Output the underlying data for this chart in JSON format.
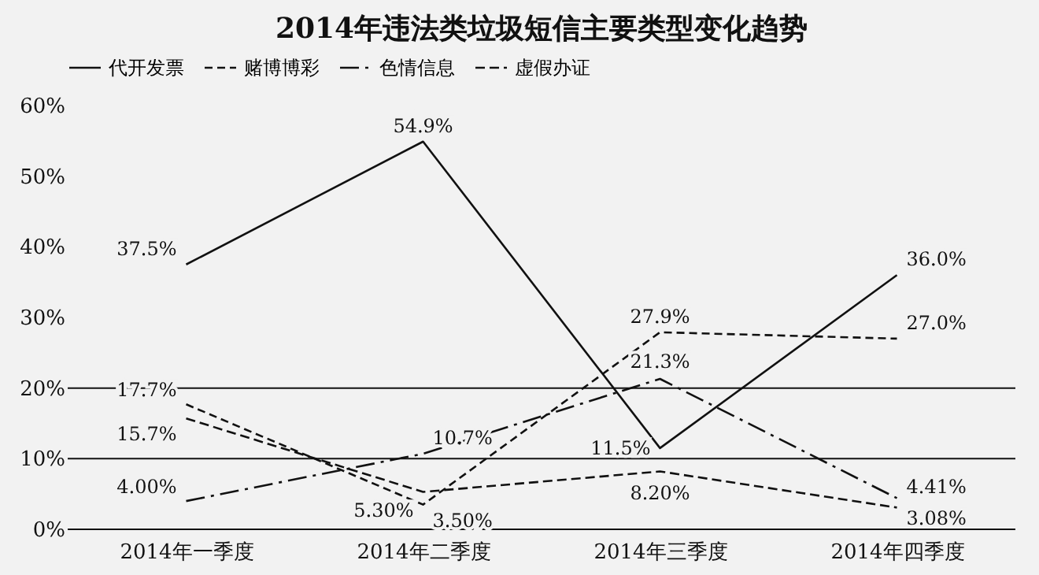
{
  "chart_data": {
    "type": "line",
    "title": "2014年违法类垃圾短信主要类型变化趋势",
    "categories": [
      "2014年一季度",
      "2014年二季度",
      "2014年三季度",
      "2014年四季度"
    ],
    "series": [
      {
        "name": "代开发票",
        "color": "#111111",
        "line_style": "solid",
        "values": [
          37.5,
          54.9,
          11.5,
          36.0
        ],
        "value_labels": [
          "37.5%",
          "54.9%",
          "11.5%",
          "36.0%"
        ]
      },
      {
        "name": "赌博博彩",
        "color": "#111111",
        "line_style": "dashed",
        "values": [
          17.7,
          3.5,
          27.9,
          27.0
        ],
        "value_labels": [
          "17.7%",
          "3.50%",
          "27.9%",
          "27.0%"
        ]
      },
      {
        "name": "色情信息",
        "color": "#111111",
        "line_style": "dashdot",
        "values": [
          4.0,
          10.7,
          21.3,
          4.41
        ],
        "value_labels": [
          "4.00%",
          "10.7%",
          "21.3%",
          "4.41%"
        ]
      },
      {
        "name": "虚假办证",
        "color": "#111111",
        "line_style": "thickdashed",
        "values": [
          15.7,
          5.3,
          8.2,
          3.08
        ],
        "value_labels": [
          "15.7%",
          "5.30%",
          "8.20%",
          "3.08%"
        ]
      }
    ],
    "ylim": [
      0,
      60
    ],
    "yticks": [
      {
        "value": 0,
        "label": "0%"
      },
      {
        "value": 10,
        "label": "10%"
      },
      {
        "value": 20,
        "label": "20%"
      },
      {
        "value": 30,
        "label": "30%"
      },
      {
        "value": 40,
        "label": "40%"
      },
      {
        "value": 50,
        "label": "50%"
      },
      {
        "value": 60,
        "label": "60%"
      }
    ],
    "ref_lines": [
      {
        "axis": "y",
        "value": 10
      },
      {
        "axis": "y",
        "value": 20
      }
    ],
    "legend": "top",
    "marker": "none",
    "grid": false
  }
}
